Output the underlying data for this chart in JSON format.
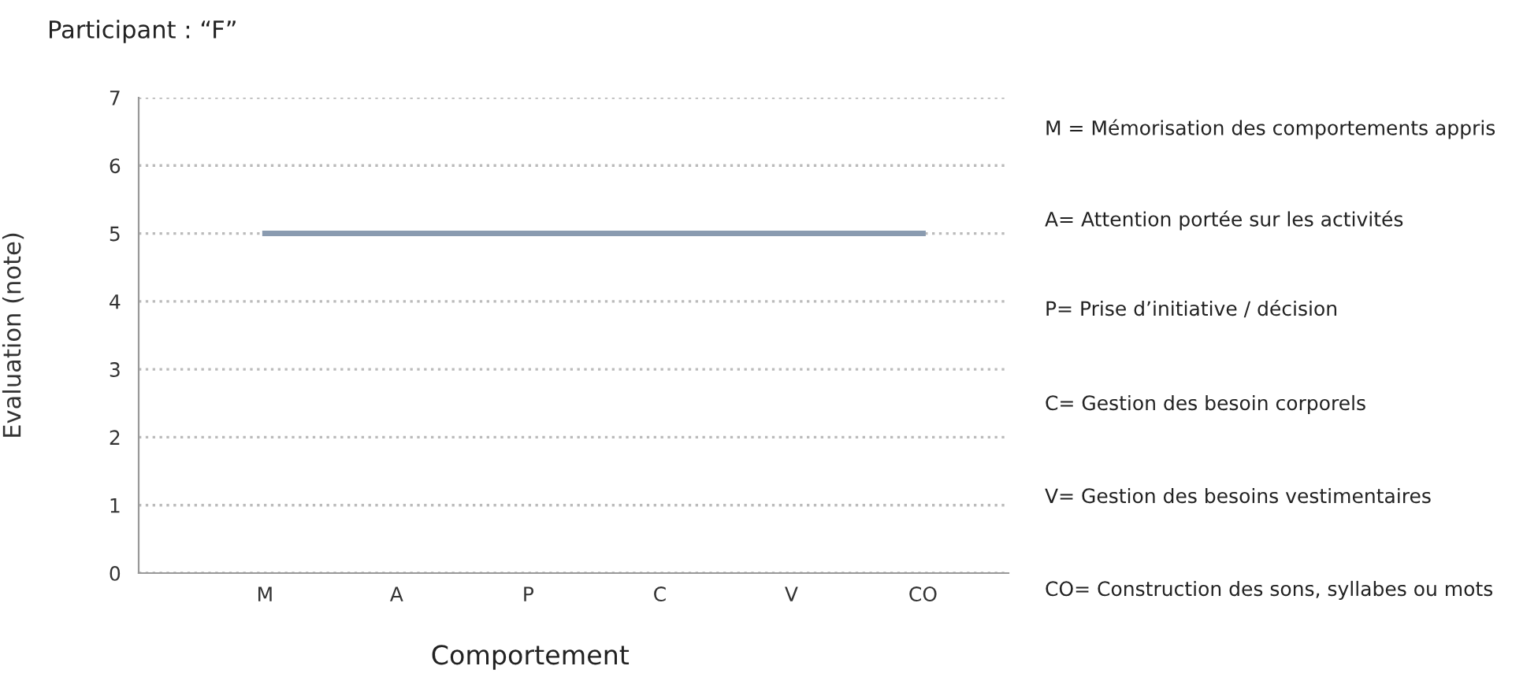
{
  "chart_data": {
    "type": "line",
    "title": "Participant : “F”",
    "xlabel": "Comportement",
    "ylabel": "Evaluation (note)",
    "categories": [
      "M",
      "A",
      "P",
      "C",
      "V",
      "CO"
    ],
    "series": [
      {
        "color": "#8a9bb0",
        "values": [
          5,
          5,
          5,
          5,
          5,
          5
        ]
      }
    ],
    "ylim": [
      0,
      7
    ],
    "yticks": [
      0,
      1,
      2,
      3,
      4,
      5,
      6,
      7
    ],
    "grid": "y",
    "marker": "none",
    "line_style": "solid",
    "annotations": [
      "M = Mémorisation des comportements appris",
      "A= Attention portée sur les activités",
      "P= Prise d’initiative / décision",
      "C= Gestion des besoin corporels",
      "V= Gestion des besoins vestimentaires",
      "CO= Construction des sons, syllabes ou mots"
    ]
  }
}
